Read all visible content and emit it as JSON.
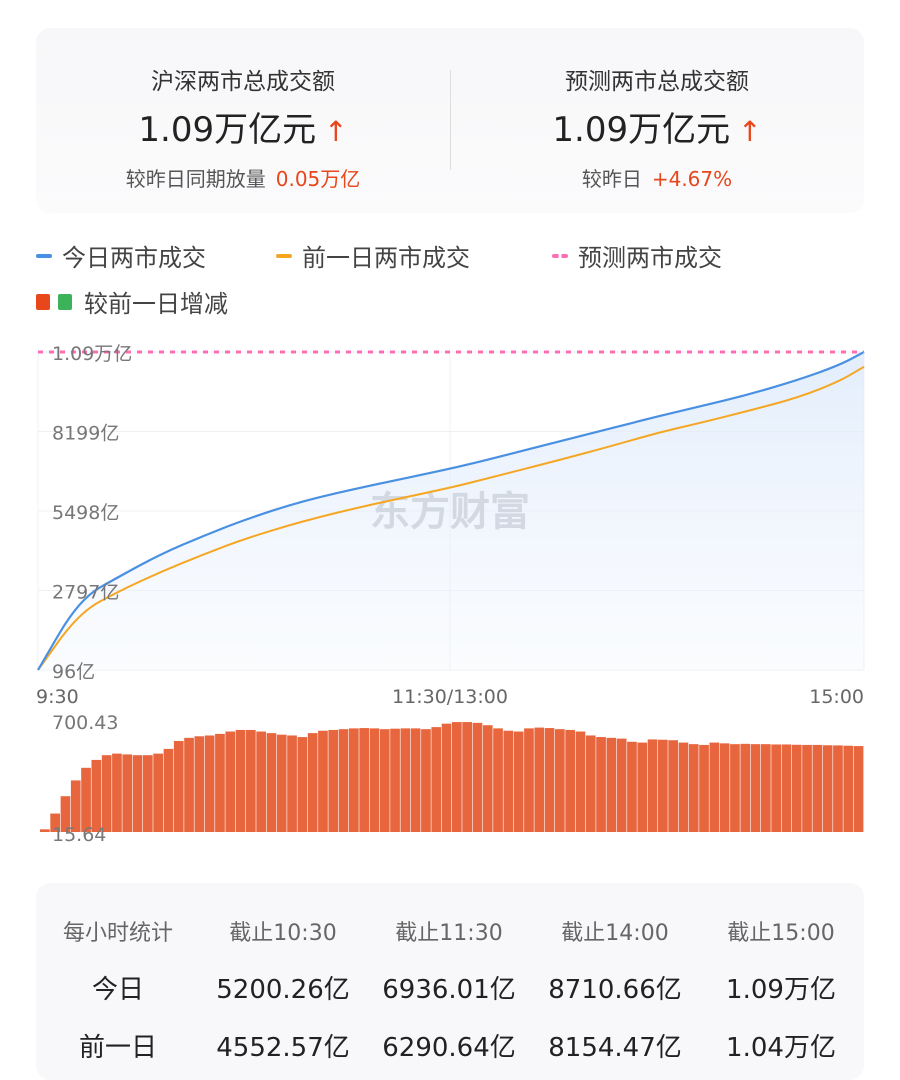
{
  "summary": {
    "left": {
      "title": "沪深两市总成交额",
      "value": "1.09万亿元",
      "arrow": "↑",
      "sub_label": "较昨日同期放量",
      "sub_value": "0.05万亿"
    },
    "right": {
      "title": "预测两市总成交额",
      "value": "1.09万亿元",
      "arrow": "↑",
      "sub_label": "较昨日",
      "sub_value": "+4.67%"
    }
  },
  "legend": {
    "today": "今日两市成交",
    "yesterday": "前一日两市成交",
    "forecast": "预测两市成交",
    "diff": "较前一日增减"
  },
  "colors": {
    "today": "#4a90e2",
    "yesterday": "#f5a623",
    "forecast": "#ff6eb4",
    "up": "#e8461b",
    "down": "#3cb35a"
  },
  "watermark": "东方财富",
  "chart_data": [
    {
      "type": "line",
      "x_ticks": [
        "9:30",
        "11:30/13:00",
        "15:00"
      ],
      "y_ticks": [
        "96亿",
        "2797亿",
        "5498亿",
        "8199亿",
        "1.09万亿"
      ],
      "ylim": [
        96,
        10900
      ],
      "unit": "亿",
      "x": [
        0,
        0.05,
        0.1,
        0.15,
        0.2,
        0.25,
        0.32,
        0.4,
        0.5,
        0.55,
        0.63,
        0.7,
        0.75,
        0.8,
        0.86,
        0.92,
        0.97,
        1.0
      ],
      "series": [
        {
          "name": "今日两市成交",
          "values": [
            96,
            2500,
            3300,
            4050,
            4650,
            5200,
            5840,
            6350,
            6936,
            7280,
            7860,
            8350,
            8711,
            9040,
            9450,
            9950,
            10450,
            10900
          ]
        },
        {
          "name": "前一日两市成交",
          "values": [
            96,
            2050,
            2800,
            3450,
            4020,
            4553,
            5150,
            5700,
            6291,
            6650,
            7220,
            7750,
            8154,
            8480,
            8900,
            9350,
            9900,
            10400
          ]
        }
      ],
      "forecast": 10900,
      "grid": true,
      "legend_position": "top-left"
    },
    {
      "type": "bar",
      "name": "较前一日增减",
      "y_ticks": [
        "700.43",
        "15.64"
      ],
      "ylim": [
        15.64,
        700.43
      ],
      "values": [
        20,
        120,
        230,
        330,
        410,
        460,
        490,
        500,
        495,
        490,
        490,
        500,
        530,
        580,
        600,
        610,
        615,
        625,
        640,
        650,
        650,
        640,
        630,
        620,
        615,
        605,
        630,
        645,
        650,
        655,
        660,
        662,
        660,
        655,
        658,
        660,
        660,
        655,
        668,
        690,
        700,
        700,
        695,
        680,
        660,
        645,
        640,
        660,
        665,
        662,
        655,
        650,
        640,
        615,
        605,
        600,
        595,
        575,
        570,
        590,
        588,
        585,
        570,
        560,
        555,
        570,
        565,
        560,
        562,
        560,
        560,
        558,
        558,
        556,
        555,
        555,
        553,
        552,
        550,
        548
      ]
    }
  ],
  "table": {
    "headers": [
      "每小时统计",
      "截止10:30",
      "截止11:30",
      "截止14:00",
      "截止15:00"
    ],
    "rows": [
      [
        "今日",
        "5200.26亿",
        "6936.01亿",
        "8710.66亿",
        "1.09万亿"
      ],
      [
        "前一日",
        "4552.57亿",
        "6290.64亿",
        "8154.47亿",
        "1.04万亿"
      ]
    ]
  }
}
